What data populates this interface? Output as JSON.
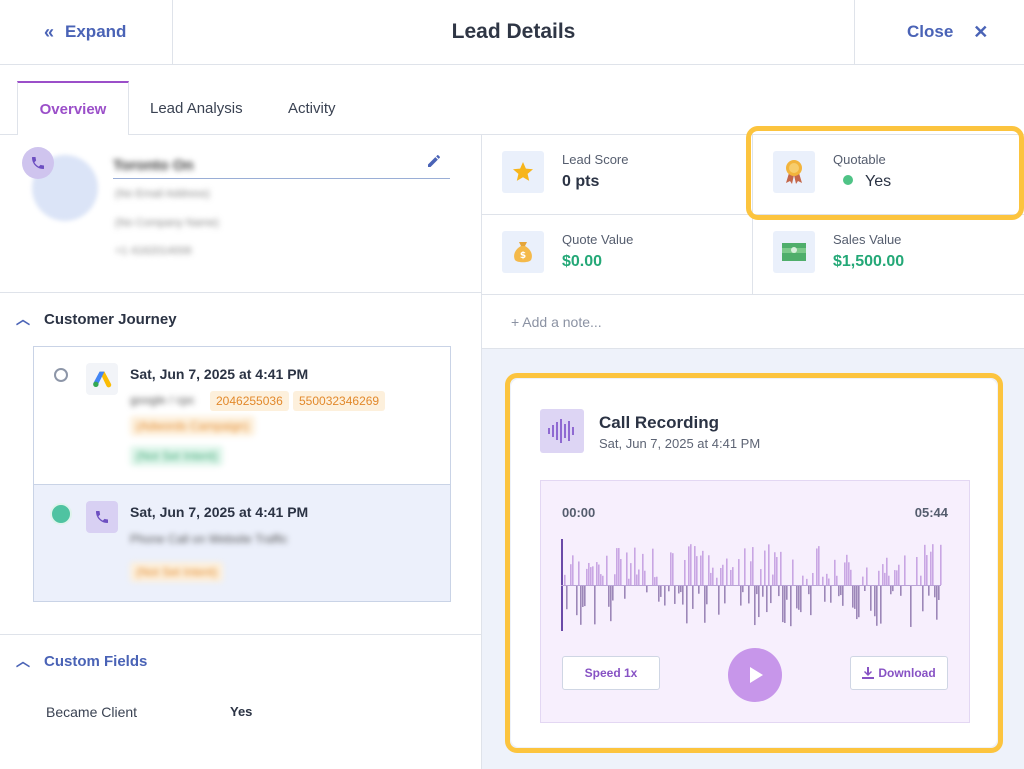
{
  "header": {
    "expand_label": "Expand",
    "title": "Lead Details",
    "close_label": "Close"
  },
  "tabs": [
    {
      "label": "Overview",
      "active": true
    },
    {
      "label": "Lead Analysis"
    },
    {
      "label": "Activity"
    }
  ],
  "profile": {
    "name": "Toronto On",
    "email": "(No Email Address)",
    "company": "(No Company Name)",
    "phone": "+1 4162014006"
  },
  "customer_journey": {
    "title": "Customer Journey",
    "items": [
      {
        "date": "Sat, Jun 7, 2025 at 4:41 PM",
        "source": "google / cpc",
        "tags": [
          "2046255036",
          "550032346269"
        ],
        "tag2": "(Adwords Campaign)",
        "tag3": "(Not Set Intent)"
      },
      {
        "date": "Sat, Jun 7, 2025 at 4:41 PM",
        "source": "Phone Call on Website Traffic",
        "tag": "(Not Set Intent)"
      }
    ]
  },
  "custom_fields": {
    "title": "Custom Fields",
    "rows": [
      {
        "label": "Became Client",
        "value": "Yes"
      }
    ]
  },
  "stats": {
    "lead_score_label": "Lead Score",
    "lead_score_value": "0 pts",
    "quotable_label": "Quotable",
    "quotable_value": "Yes",
    "quote_value_label": "Quote Value",
    "quote_value_value": "$0.00",
    "sales_value_label": "Sales Value",
    "sales_value_value": "$1,500.00"
  },
  "note_placeholder": "+ Add a note...",
  "recording": {
    "title": "Call Recording",
    "date": "Sat, Jun 7, 2025 at 4:41 PM",
    "time_start": "00:00",
    "time_end": "05:44",
    "speed_label": "Speed 1x",
    "download_label": "Download"
  },
  "colors": {
    "accent_purple": "#9b4fc9",
    "link_blue": "#4a63b6",
    "money_green": "#24a877",
    "highlight": "#fcc43e"
  }
}
